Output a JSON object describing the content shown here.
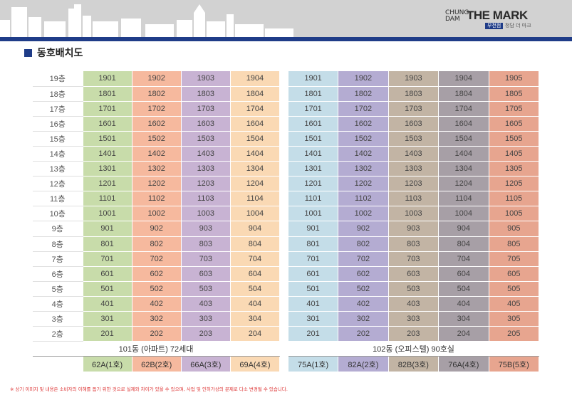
{
  "header": {
    "logo": {
      "brand_small": "CHUNG DAM",
      "brand_main": "THE MARK",
      "tag": "부천점",
      "sub": "청담 더 마크"
    }
  },
  "section_title": "동호배치도",
  "building101": {
    "label": "101동 (아파트) 72세대",
    "types": [
      "62A(1호)",
      "62B(2호)",
      "66A(3호)",
      "69A(4호)"
    ],
    "rows": [
      {
        "floor": "19층",
        "units": [
          "1901",
          "1902",
          "1903",
          "1904"
        ]
      },
      {
        "floor": "18층",
        "units": [
          "1801",
          "1802",
          "1803",
          "1804"
        ]
      },
      {
        "floor": "17층",
        "units": [
          "1701",
          "1702",
          "1703",
          "1704"
        ]
      },
      {
        "floor": "16층",
        "units": [
          "1601",
          "1602",
          "1603",
          "1604"
        ]
      },
      {
        "floor": "15층",
        "units": [
          "1501",
          "1502",
          "1503",
          "1504"
        ]
      },
      {
        "floor": "14층",
        "units": [
          "1401",
          "1402",
          "1403",
          "1404"
        ]
      },
      {
        "floor": "13층",
        "units": [
          "1301",
          "1302",
          "1303",
          "1304"
        ]
      },
      {
        "floor": "12층",
        "units": [
          "1201",
          "1202",
          "1203",
          "1204"
        ]
      },
      {
        "floor": "11층",
        "units": [
          "1101",
          "1102",
          "1103",
          "1104"
        ]
      },
      {
        "floor": "10층",
        "units": [
          "1001",
          "1002",
          "1003",
          "1004"
        ]
      },
      {
        "floor": "9층",
        "units": [
          "901",
          "902",
          "903",
          "904"
        ]
      },
      {
        "floor": "8층",
        "units": [
          "801",
          "802",
          "803",
          "804"
        ]
      },
      {
        "floor": "7층",
        "units": [
          "701",
          "702",
          "703",
          "704"
        ]
      },
      {
        "floor": "6층",
        "units": [
          "601",
          "602",
          "603",
          "604"
        ]
      },
      {
        "floor": "5층",
        "units": [
          "501",
          "502",
          "503",
          "504"
        ]
      },
      {
        "floor": "4층",
        "units": [
          "401",
          "402",
          "403",
          "404"
        ]
      },
      {
        "floor": "3층",
        "units": [
          "301",
          "302",
          "303",
          "304"
        ]
      },
      {
        "floor": "2층",
        "units": [
          "201",
          "202",
          "203",
          "204"
        ]
      }
    ]
  },
  "building102": {
    "label": "102동 (오피스텔) 90호실",
    "types": [
      "75A(1호)",
      "82A(2호)",
      "82B(3호)",
      "76A(4호)",
      "75B(5호)"
    ],
    "rows": [
      [
        "1901",
        "1902",
        "1903",
        "1904",
        "1905"
      ],
      [
        "1801",
        "1802",
        "1803",
        "1804",
        "1805"
      ],
      [
        "1701",
        "1702",
        "1703",
        "1704",
        "1705"
      ],
      [
        "1601",
        "1602",
        "1603",
        "1604",
        "1605"
      ],
      [
        "1501",
        "1502",
        "1503",
        "1504",
        "1505"
      ],
      [
        "1401",
        "1402",
        "1403",
        "1404",
        "1405"
      ],
      [
        "1301",
        "1302",
        "1303",
        "1304",
        "1305"
      ],
      [
        "1201",
        "1202",
        "1203",
        "1204",
        "1205"
      ],
      [
        "1101",
        "1102",
        "1103",
        "1104",
        "1105"
      ],
      [
        "1001",
        "1002",
        "1003",
        "1004",
        "1005"
      ],
      [
        "901",
        "902",
        "903",
        "904",
        "905"
      ],
      [
        "801",
        "802",
        "803",
        "804",
        "805"
      ],
      [
        "701",
        "702",
        "703",
        "704",
        "705"
      ],
      [
        "601",
        "602",
        "603",
        "604",
        "605"
      ],
      [
        "501",
        "502",
        "503",
        "504",
        "505"
      ],
      [
        "401",
        "402",
        "403",
        "404",
        "405"
      ],
      [
        "301",
        "302",
        "303",
        "304",
        "305"
      ],
      [
        "201",
        "202",
        "203",
        "204",
        "205"
      ]
    ]
  },
  "colors": {
    "b101": [
      "#c8dcaa",
      "#f6b99e",
      "#c8b3d3",
      "#fad9b4"
    ],
    "b102": [
      "#c4dde8",
      "#b4acd2",
      "#c2b4a4",
      "#a79fa6",
      "#e7a58f"
    ],
    "accent": "#1f3c88"
  },
  "footnote": "※ 상기 이미지 및 내용은 소비자의 이해를 돕기 위한 것으로 실제와 차이가 있을 수 있으며, 사업 및 인허가상의 문제로 다소 변경될 수 있습니다."
}
